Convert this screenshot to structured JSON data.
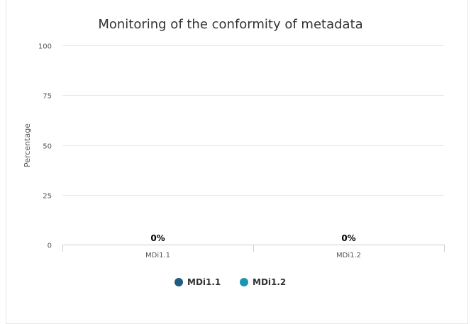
{
  "chart_data": {
    "type": "bar",
    "title": "Monitoring of the conformity of metadata",
    "ylabel": "Percentage",
    "xlabel": "",
    "ylim": [
      0,
      100
    ],
    "yticks": [
      0,
      25,
      50,
      75,
      100
    ],
    "categories": [
      "MDi1.1",
      "MDi1.2"
    ],
    "series": [
      {
        "name": "MDi1.1",
        "color": "#1f5b82",
        "values": [
          0,
          null
        ]
      },
      {
        "name": "MDi1.2",
        "color": "#1a96b0",
        "values": [
          null,
          0
        ]
      }
    ],
    "data_labels": [
      "0%",
      "0%"
    ],
    "grid": true,
    "legend_position": "bottom"
  }
}
